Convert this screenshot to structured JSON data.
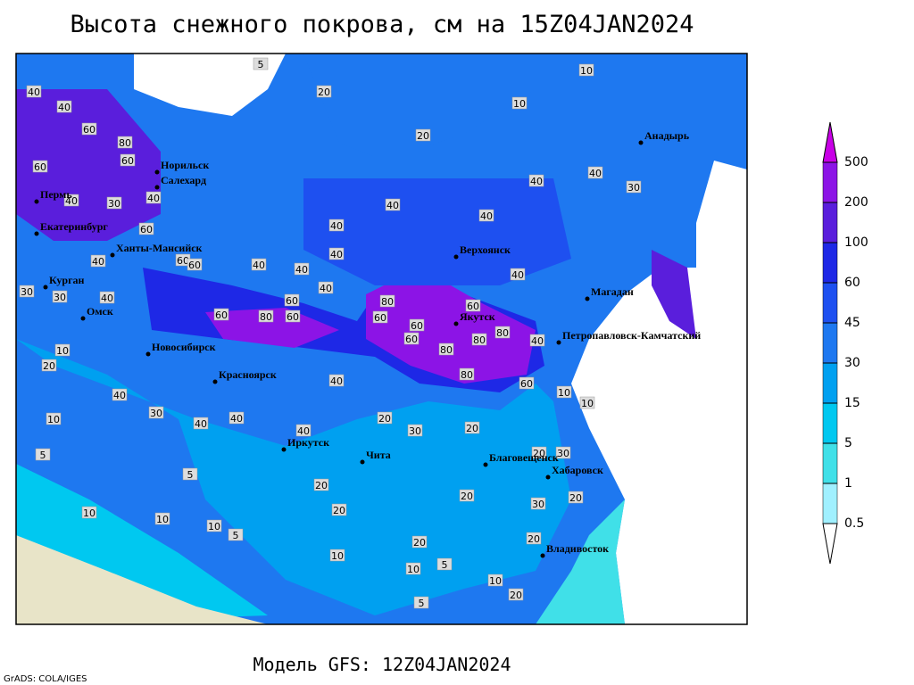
{
  "title": "Высота снежного покрова, см на 15Z04JAN2024",
  "subtitle": "Модель GFS: 12Z04JAN2024",
  "credit": "GrADS: COLA/IGES",
  "colorbar": {
    "levels": [
      0.5,
      1,
      5,
      15,
      30,
      45,
      60,
      100,
      200,
      500
    ],
    "colors": [
      "#ffffff",
      "#a0f0ff",
      "#40e0e8",
      "#00c8f0",
      "#00a0f0",
      "#1e78f0",
      "#1e50f0",
      "#1e28e6",
      "#5a1edc",
      "#8c14e6",
      "#c800e6"
    ]
  },
  "cities": [
    "Норильск",
    "Салехард",
    "Пермь",
    "Екатеринбург",
    "Ханты-Мансийск",
    "Курган",
    "Омск",
    "Новосибирск",
    "Красноярск",
    "Иркутск",
    "Чита",
    "Верхоянск",
    "Якутск",
    "Магадан",
    "Анадырь",
    "Петропавловск-Камчатский",
    "Благовещенск",
    "Хабаровск",
    "Владивосток"
  ],
  "contour_labels": [
    40,
    40,
    60,
    80,
    60,
    60,
    40,
    30,
    40,
    60,
    40,
    60,
    60,
    40,
    40,
    40,
    40,
    40,
    30,
    30,
    60,
    80,
    60,
    60,
    80,
    60,
    60,
    60,
    80,
    80,
    80,
    80,
    60,
    40,
    60,
    40,
    40,
    40,
    40,
    30,
    40,
    40,
    20,
    10,
    20,
    10,
    10,
    20,
    40,
    30,
    40,
    40,
    40,
    40,
    20,
    30,
    20,
    20,
    20,
    30,
    30,
    20,
    20,
    20,
    20,
    20,
    10,
    10,
    10,
    20,
    10,
    5,
    5,
    5,
    5,
    10,
    10,
    10,
    5,
    5,
    10,
    10
  ]
}
